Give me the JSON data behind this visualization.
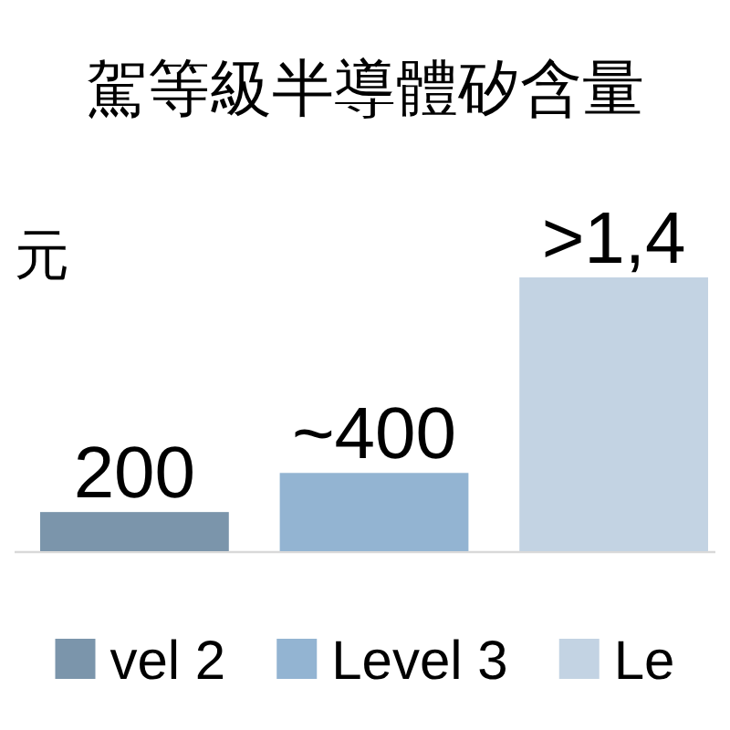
{
  "chart_data": {
    "type": "bar",
    "title": "駕等級半導體矽含量",
    "subtitle": "元",
    "categories": [
      null
    ],
    "series": [
      {
        "name": "vel 2",
        "color": "#7b95ab",
        "values": [
          200
        ],
        "value_labels": [
          "200"
        ]
      },
      {
        "name": "Level 3",
        "color": "#93b4d2",
        "values": [
          400
        ],
        "value_labels": [
          "~400"
        ]
      },
      {
        "name": "Le",
        "color": "#c3d3e3",
        "values": [
          1400
        ],
        "value_labels": [
          ">1,4"
        ]
      }
    ],
    "legend": "bottom"
  }
}
